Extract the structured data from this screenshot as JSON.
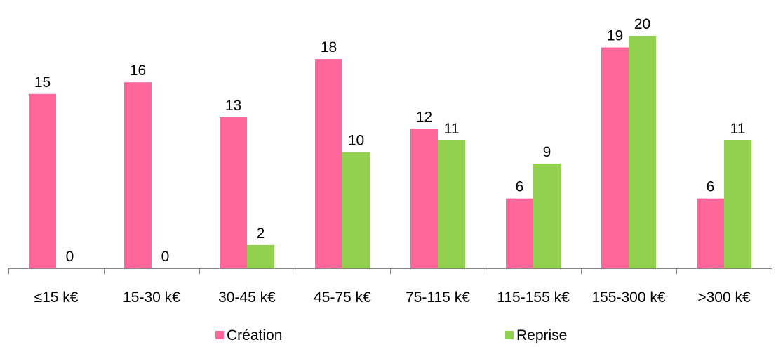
{
  "chart_data": {
    "type": "bar",
    "categories": [
      "≤15 k€",
      "15-30 k€",
      "30-45 k€",
      "45-75 k€",
      "75-115 k€",
      "115-155 k€",
      "155-300 k€",
      ">300 k€"
    ],
    "series": [
      {
        "name": "Création",
        "values": [
          15,
          16,
          13,
          18,
          12,
          6,
          19,
          6
        ],
        "color": "#ff6699"
      },
      {
        "name": "Reprise",
        "values": [
          0,
          0,
          2,
          10,
          11,
          9,
          20,
          11
        ],
        "color": "#92d050"
      }
    ],
    "title": "",
    "xlabel": "",
    "ylabel": "",
    "ylim": [
      0,
      20
    ],
    "data_labels": true,
    "legend": "bottom",
    "grid": false
  }
}
